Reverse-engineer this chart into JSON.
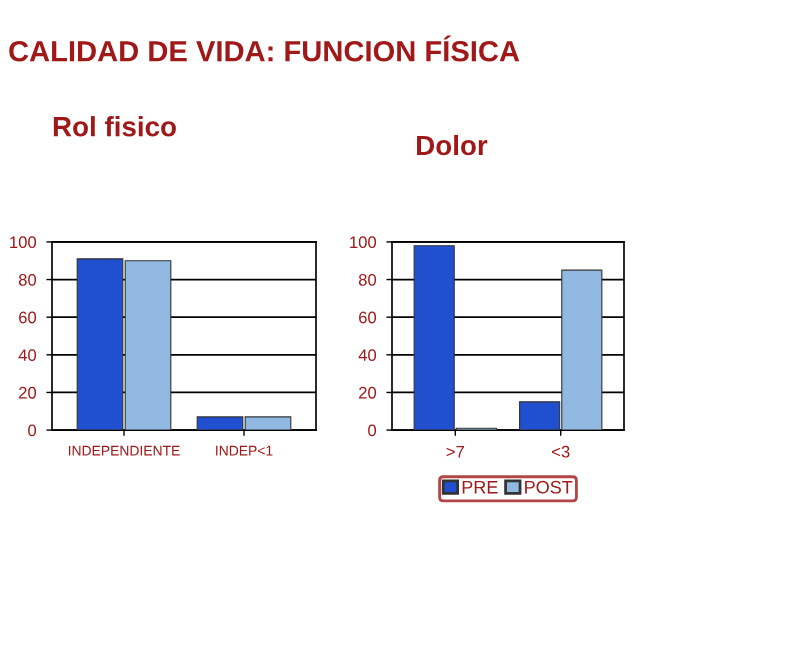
{
  "chart_data": [
    {
      "type": "bar",
      "title": "CALIDAD DE VIDA: FUNCION FÍSICA",
      "subtitle": "Rol fisico",
      "categories": [
        "INDEPENDIENTE",
        "INDEP<1"
      ],
      "series": [
        {
          "color": "#2050d0",
          "values": [
            91,
            7
          ]
        },
        {
          "color": "#90b8e0",
          "values": [
            90,
            7
          ]
        }
      ],
      "ylim": [
        0,
        100
      ],
      "yticks": [
        0,
        20,
        40,
        60,
        80,
        100
      ],
      "grid": "y"
    },
    {
      "type": "bar",
      "title": "Dolor",
      "categories": [
        ">7",
        "<3"
      ],
      "series": [
        {
          "name": "PRE",
          "color": "#2050d0",
          "values": [
            98,
            15
          ]
        },
        {
          "name": "POST",
          "color": "#90b8e0",
          "values": [
            1,
            85
          ]
        }
      ],
      "ylim": [
        0,
        100
      ],
      "yticks": [
        0,
        20,
        40,
        60,
        80,
        100
      ],
      "grid": "y",
      "legend": "bottom"
    }
  ]
}
